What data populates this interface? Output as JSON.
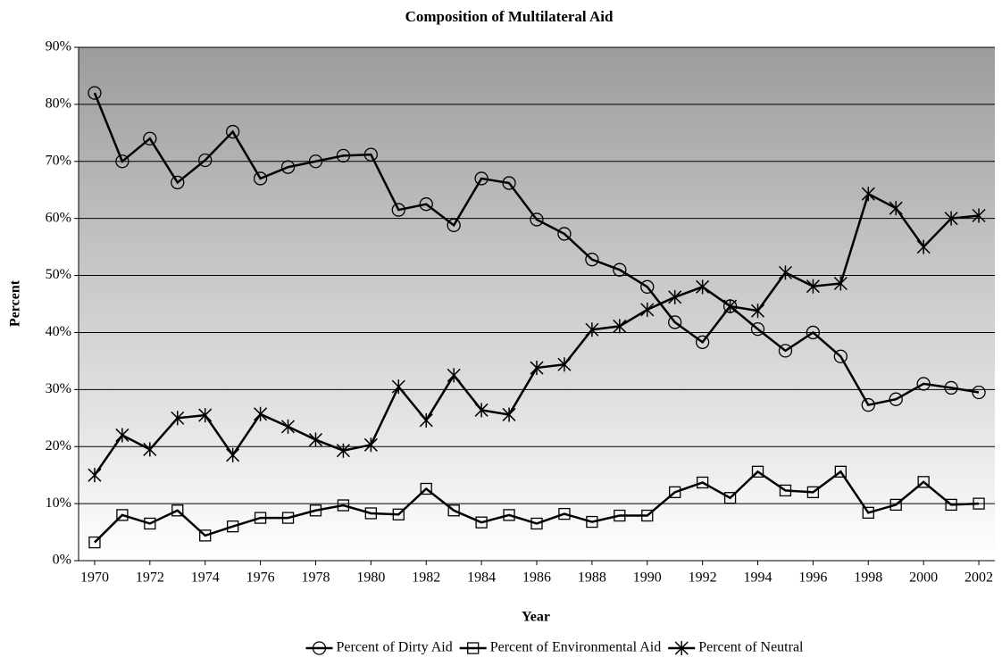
{
  "chart_data": {
    "type": "line",
    "title": "Composition of Multilateral Aid",
    "x_label": "Year",
    "y_label": "Percent",
    "x": [
      1970,
      1971,
      1972,
      1973,
      1974,
      1975,
      1976,
      1977,
      1978,
      1979,
      1980,
      1981,
      1982,
      1983,
      1984,
      1985,
      1986,
      1987,
      1988,
      1989,
      1990,
      1991,
      1992,
      1993,
      1994,
      1995,
      1996,
      1997,
      1998,
      1999,
      2000,
      2001,
      2002
    ],
    "xlim": [
      1969.42,
      2002.58
    ],
    "xticks": [
      1970,
      1972,
      1974,
      1976,
      1978,
      1980,
      1982,
      1984,
      1986,
      1988,
      1990,
      1992,
      1994,
      1996,
      1998,
      2000,
      2002
    ],
    "ylim": [
      0,
      90
    ],
    "yticks": [
      {
        "value": 0,
        "label": "0%"
      },
      {
        "value": 10,
        "label": "10%"
      },
      {
        "value": 20,
        "label": "20%"
      },
      {
        "value": 30,
        "label": "30%"
      },
      {
        "value": 40,
        "label": "40%"
      },
      {
        "value": 50,
        "label": "50%"
      },
      {
        "value": 60,
        "label": "60%"
      },
      {
        "value": 70,
        "label": "70%"
      },
      {
        "value": 80,
        "label": "80%"
      },
      {
        "value": 90,
        "label": "90%"
      }
    ],
    "grid": true,
    "legend": "bottom",
    "series": [
      {
        "name": "Percent of Dirty Aid",
        "color": "#000000",
        "marker": "circle",
        "values": [
          82,
          70,
          74,
          66.3,
          70.2,
          75.2,
          67,
          69,
          70,
          71,
          71.2,
          61.5,
          62.5,
          58.8,
          67,
          66.2,
          59.8,
          57.3,
          52.8,
          51,
          48,
          41.8,
          38.3,
          44.6,
          40.6,
          36.8,
          40,
          35.8,
          27.3,
          28.3,
          31,
          30.3,
          29.5
        ]
      },
      {
        "name": "Percent of Environmental Aid",
        "color": "#000000",
        "marker": "square",
        "values": [
          3.2,
          8,
          6.5,
          8.8,
          4.4,
          6,
          7.5,
          7.5,
          8.8,
          9.7,
          8.3,
          8.1,
          12.6,
          8.8,
          6.7,
          8,
          6.5,
          8.2,
          6.8,
          7.9,
          7.9,
          12,
          13.7,
          11,
          15.6,
          12.3,
          12,
          15.6,
          8.4,
          9.8,
          13.8,
          9.8,
          10
        ]
      },
      {
        "name": "Percent of Neutral",
        "color": "#000000",
        "marker": "star",
        "values": [
          15,
          22,
          19.5,
          25,
          25.5,
          18.5,
          25.7,
          23.5,
          21.2,
          19.3,
          20.3,
          30.5,
          24.6,
          32.5,
          26.4,
          25.6,
          33.8,
          34.4,
          40.5,
          41.1,
          44,
          46.2,
          48,
          44.6,
          43.8,
          50.5,
          48.1,
          48.6,
          64.3,
          61.8,
          55,
          60,
          60.5
        ]
      }
    ]
  }
}
